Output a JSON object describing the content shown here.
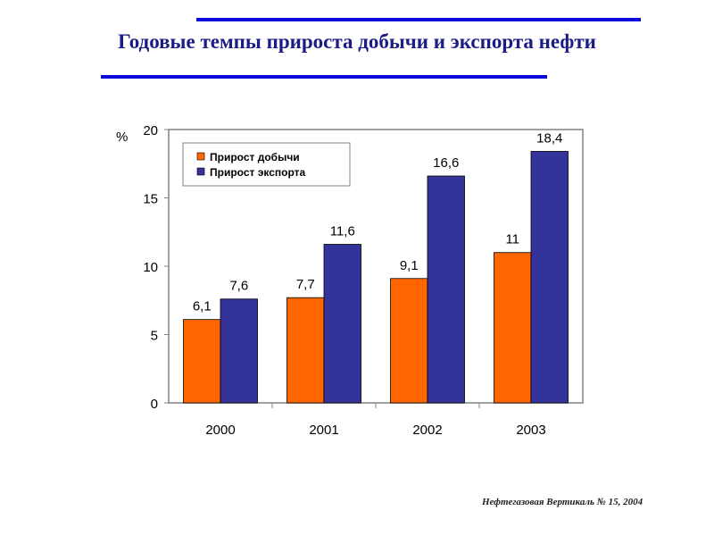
{
  "title": "Годовые темпы прироста добычи и экспорта нефти",
  "source": "Нефтегазовая Вертикаль № 15, 2004",
  "colors": {
    "accent_rule": "#0a0adc",
    "title": "#1c1c86",
    "production": "#ff6600",
    "export": "#333399"
  },
  "chart_data": {
    "type": "bar",
    "title": "",
    "xlabel": "",
    "ylabel": "%",
    "ylim": [
      0,
      20
    ],
    "yticks": [
      "0",
      "5",
      "10",
      "15",
      "20"
    ],
    "categories": [
      "2000",
      "2001",
      "2002",
      "2003"
    ],
    "series": [
      {
        "name": "Прирост добычи",
        "values": [
          6.1,
          7.7,
          9.1,
          11
        ],
        "labels": [
          "6,1",
          "7,7",
          "9,1",
          "11"
        ],
        "color": "#ff6600"
      },
      {
        "name": "Прирост экспорта",
        "values": [
          7.6,
          11.6,
          16.6,
          18.4
        ],
        "labels": [
          "7,6",
          "11,6",
          "16,6",
          "18,4"
        ],
        "color": "#333399"
      }
    ],
    "legend": "top-left",
    "grid": false
  }
}
